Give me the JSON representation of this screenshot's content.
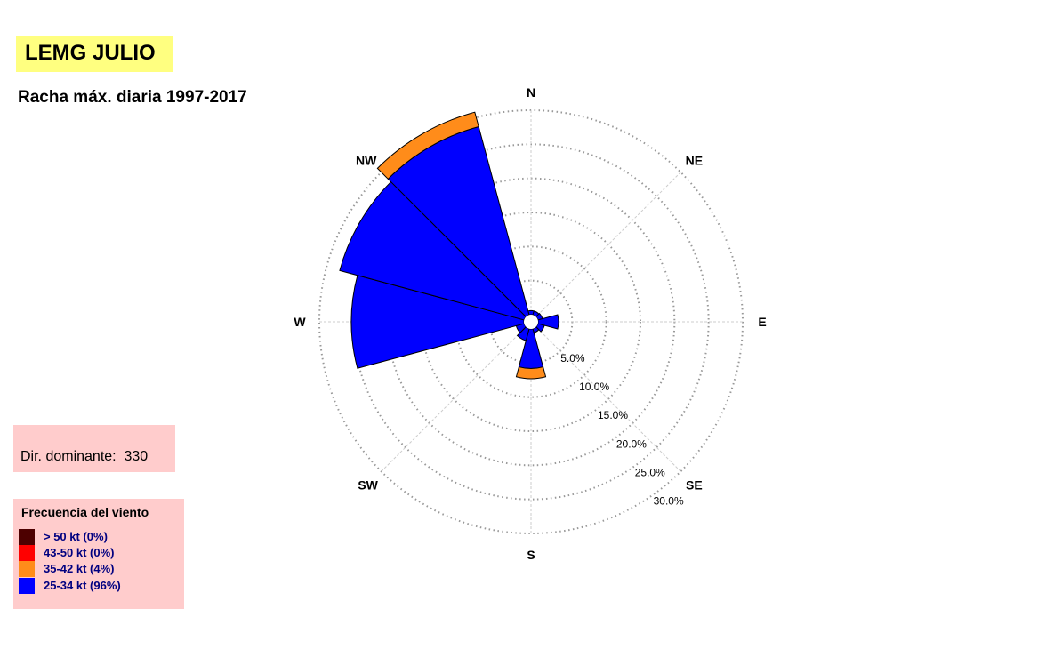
{
  "header": {
    "title": "LEMG JULIO",
    "subtitle": "Racha máx. diaria 1997-2017"
  },
  "dominant": {
    "label": "Dir. dominante:",
    "value": "330"
  },
  "legend": {
    "title": "Frecuencia del viento",
    "items": [
      {
        "label": "> 50 kt (0%)",
        "color": "#4d0000"
      },
      {
        "label": "43-50 kt (0%)",
        "color": "#ff0000"
      },
      {
        "label": "35-42 kt (4%)",
        "color": "#ff8c1a"
      },
      {
        "label": "25-34 kt (96%)",
        "color": "#0000ff"
      }
    ]
  },
  "chart_data": {
    "type": "windrose",
    "directions": [
      "N",
      "NE",
      "E",
      "SE",
      "S",
      "SW",
      "W",
      "NW"
    ],
    "radial_ticks": [
      "5.0%",
      "10.0%",
      "15.0%",
      "20.0%",
      "25.0%",
      "30.0%"
    ],
    "radial_max": 30,
    "sector_width_deg": 30,
    "series": [
      {
        "name": "25-34 kt (96%)",
        "color": "#0000ff"
      },
      {
        "name": "35-42 kt (4%)",
        "color": "#ff8c1a"
      }
    ],
    "sectors": [
      {
        "direction": 0,
        "values": [
          0.6,
          0
        ]
      },
      {
        "direction": 30,
        "values": [
          0.6,
          0
        ]
      },
      {
        "direction": 60,
        "values": [
          0.7,
          0
        ]
      },
      {
        "direction": 90,
        "values": [
          3.0,
          0
        ]
      },
      {
        "direction": 120,
        "values": [
          1.0,
          0
        ]
      },
      {
        "direction": 150,
        "values": [
          0.6,
          0
        ]
      },
      {
        "direction": 180,
        "values": [
          5.8,
          1.5
        ]
      },
      {
        "direction": 210,
        "values": [
          1.8,
          0
        ]
      },
      {
        "direction": 240,
        "values": [
          1.2,
          0
        ]
      },
      {
        "direction": 270,
        "values": [
          25.3,
          0
        ]
      },
      {
        "direction": 300,
        "values": [
          28.0,
          0
        ]
      },
      {
        "direction": 330,
        "values": [
          28.6,
          2.2
        ]
      }
    ],
    "dominant_direction": 330
  }
}
